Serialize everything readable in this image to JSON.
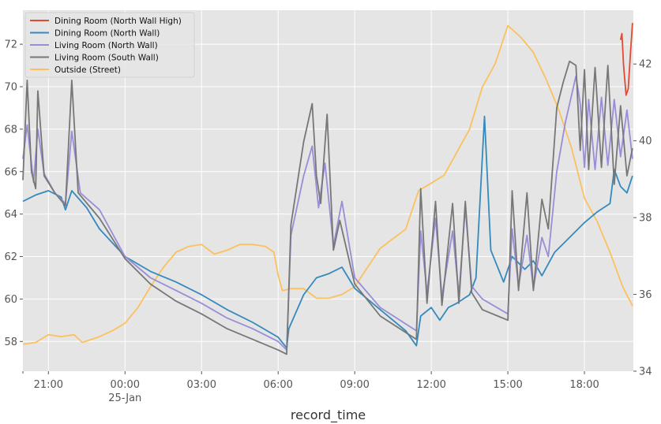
{
  "chart_data": {
    "type": "line",
    "xlabel": "record_time",
    "grid": true,
    "legend_position": "top-left",
    "x_range": [
      "2021-01-24T20:00",
      "2021-01-25T19:55"
    ],
    "x_ticks": [
      {
        "t": "2021-01-24T21:00",
        "label": "21:00"
      },
      {
        "t": "2021-01-25T00:00",
        "label": "00:00",
        "sublabel": "25-Jan"
      },
      {
        "t": "2021-01-25T03:00",
        "label": "03:00"
      },
      {
        "t": "2021-01-25T06:00",
        "label": "06:00"
      },
      {
        "t": "2021-01-25T09:00",
        "label": "09:00"
      },
      {
        "t": "2021-01-25T12:00",
        "label": "12:00"
      },
      {
        "t": "2021-01-25T15:00",
        "label": "15:00"
      },
      {
        "t": "2021-01-25T18:00",
        "label": "18:00"
      }
    ],
    "y_left": {
      "range": [
        56.6,
        73.6
      ],
      "ticks": [
        58,
        60,
        62,
        64,
        66,
        68,
        70,
        72
      ]
    },
    "y_right": {
      "range": [
        34.0,
        43.4
      ],
      "ticks": [
        34,
        36,
        38,
        40,
        42
      ]
    },
    "series": [
      {
        "name": "Dining Room (North Wall High)",
        "color": "#E24A33",
        "axis": "left",
        "points": [
          [
            "2021-01-25T19:25",
            72.2
          ],
          [
            "2021-01-25T19:28",
            72.5
          ],
          [
            "2021-01-25T19:32",
            71.0
          ],
          [
            "2021-01-25T19:38",
            69.6
          ],
          [
            "2021-01-25T19:43",
            69.9
          ],
          [
            "2021-01-25T19:48",
            71.5
          ],
          [
            "2021-01-25T19:53",
            73.0
          ]
        ]
      },
      {
        "name": "Dining Room (North Wall)",
        "color": "#348ABD",
        "axis": "left",
        "points": [
          [
            "2021-01-24T20:00",
            64.6
          ],
          [
            "2021-01-24T20:30",
            64.9
          ],
          [
            "2021-01-24T21:00",
            65.1
          ],
          [
            "2021-01-24T21:30",
            64.8
          ],
          [
            "2021-01-24T21:40",
            64.2
          ],
          [
            "2021-01-24T21:55",
            65.1
          ],
          [
            "2021-01-24T22:30",
            64.3
          ],
          [
            "2021-01-24T23:00",
            63.3
          ],
          [
            "2021-01-25T00:00",
            62.0
          ],
          [
            "2021-01-25T01:00",
            61.3
          ],
          [
            "2021-01-25T02:00",
            60.8
          ],
          [
            "2021-01-25T03:00",
            60.2
          ],
          [
            "2021-01-25T04:00",
            59.5
          ],
          [
            "2021-01-25T05:00",
            58.9
          ],
          [
            "2021-01-25T06:00",
            58.2
          ],
          [
            "2021-01-25T06:20",
            57.7
          ],
          [
            "2021-01-25T06:25",
            58.6
          ],
          [
            "2021-01-25T07:00",
            60.2
          ],
          [
            "2021-01-25T07:30",
            61.0
          ],
          [
            "2021-01-25T08:00",
            61.2
          ],
          [
            "2021-01-25T08:30",
            61.5
          ],
          [
            "2021-01-25T09:00",
            60.5
          ],
          [
            "2021-01-25T10:00",
            59.5
          ],
          [
            "2021-01-25T11:00",
            58.5
          ],
          [
            "2021-01-25T11:25",
            57.8
          ],
          [
            "2021-01-25T11:35",
            59.2
          ],
          [
            "2021-01-25T12:00",
            59.6
          ],
          [
            "2021-01-25T12:20",
            59.0
          ],
          [
            "2021-01-25T12:40",
            59.6
          ],
          [
            "2021-01-25T13:00",
            59.8
          ],
          [
            "2021-01-25T13:30",
            60.2
          ],
          [
            "2021-01-25T13:45",
            61.0
          ],
          [
            "2021-01-25T14:05",
            68.6
          ],
          [
            "2021-01-25T14:20",
            62.3
          ],
          [
            "2021-01-25T14:50",
            60.8
          ],
          [
            "2021-01-25T15:10",
            62.0
          ],
          [
            "2021-01-25T15:40",
            61.4
          ],
          [
            "2021-01-25T16:00",
            61.8
          ],
          [
            "2021-01-25T16:20",
            61.1
          ],
          [
            "2021-01-25T16:50",
            62.2
          ],
          [
            "2021-01-25T17:30",
            63.0
          ],
          [
            "2021-01-25T18:00",
            63.6
          ],
          [
            "2021-01-25T18:30",
            64.1
          ],
          [
            "2021-01-25T19:00",
            64.5
          ],
          [
            "2021-01-25T19:10",
            66.1
          ],
          [
            "2021-01-25T19:25",
            65.3
          ],
          [
            "2021-01-25T19:40",
            65.0
          ],
          [
            "2021-01-25T19:53",
            65.8
          ]
        ]
      },
      {
        "name": "Living Room (North Wall)",
        "color": "#988ED5",
        "axis": "left",
        "points": [
          [
            "2021-01-24T20:00",
            66.6
          ],
          [
            "2021-01-24T20:10",
            68.2
          ],
          [
            "2021-01-24T20:25",
            65.5
          ],
          [
            "2021-01-24T20:35",
            68.0
          ],
          [
            "2021-01-24T20:50",
            65.9
          ],
          [
            "2021-01-24T21:15",
            65.0
          ],
          [
            "2021-01-24T21:40",
            64.5
          ],
          [
            "2021-01-24T21:55",
            67.9
          ],
          [
            "2021-01-24T22:15",
            65.0
          ],
          [
            "2021-01-24T23:00",
            64.2
          ],
          [
            "2021-01-25T00:00",
            62.0
          ],
          [
            "2021-01-25T01:00",
            61.0
          ],
          [
            "2021-01-25T02:00",
            60.4
          ],
          [
            "2021-01-25T03:00",
            59.8
          ],
          [
            "2021-01-25T04:00",
            59.1
          ],
          [
            "2021-01-25T05:00",
            58.6
          ],
          [
            "2021-01-25T06:00",
            58.0
          ],
          [
            "2021-01-25T06:20",
            57.6
          ],
          [
            "2021-01-25T06:30",
            63.0
          ],
          [
            "2021-01-25T07:00",
            65.8
          ],
          [
            "2021-01-25T07:20",
            67.2
          ],
          [
            "2021-01-25T07:35",
            64.3
          ],
          [
            "2021-01-25T07:50",
            66.4
          ],
          [
            "2021-01-25T08:10",
            62.5
          ],
          [
            "2021-01-25T08:30",
            64.6
          ],
          [
            "2021-01-25T09:00",
            61.0
          ],
          [
            "2021-01-25T10:00",
            59.6
          ],
          [
            "2021-01-25T11:25",
            58.5
          ],
          [
            "2021-01-25T11:35",
            63.2
          ],
          [
            "2021-01-25T11:50",
            60.3
          ],
          [
            "2021-01-25T12:10",
            63.8
          ],
          [
            "2021-01-25T12:25",
            60.1
          ],
          [
            "2021-01-25T12:50",
            63.2
          ],
          [
            "2021-01-25T13:05",
            60.2
          ],
          [
            "2021-01-25T13:20",
            64.3
          ],
          [
            "2021-01-25T13:35",
            60.6
          ],
          [
            "2021-01-25T14:00",
            60.0
          ],
          [
            "2021-01-25T15:00",
            59.3
          ],
          [
            "2021-01-25T15:10",
            63.3
          ],
          [
            "2021-01-25T15:25",
            60.6
          ],
          [
            "2021-01-25T15:45",
            63.0
          ],
          [
            "2021-01-25T16:00",
            60.5
          ],
          [
            "2021-01-25T16:20",
            62.9
          ],
          [
            "2021-01-25T16:35",
            62.0
          ],
          [
            "2021-01-25T16:55",
            66.0
          ],
          [
            "2021-01-25T17:15",
            68.3
          ],
          [
            "2021-01-25T17:40",
            70.5
          ],
          [
            "2021-01-25T17:50",
            69.2
          ],
          [
            "2021-01-25T18:00",
            66.2
          ],
          [
            "2021-01-25T18:10",
            69.4
          ],
          [
            "2021-01-25T18:25",
            66.1
          ],
          [
            "2021-01-25T18:40",
            69.5
          ],
          [
            "2021-01-25T18:55",
            66.3
          ],
          [
            "2021-01-25T19:10",
            69.4
          ],
          [
            "2021-01-25T19:25",
            66.7
          ],
          [
            "2021-01-25T19:40",
            68.9
          ],
          [
            "2021-01-25T19:53",
            66.6
          ]
        ]
      },
      {
        "name": "Living Room (South Wall)",
        "color": "#777777",
        "axis": "left",
        "points": [
          [
            "2021-01-24T20:00",
            65.6
          ],
          [
            "2021-01-24T20:10",
            70.3
          ],
          [
            "2021-01-24T20:20",
            66.0
          ],
          [
            "2021-01-24T20:30",
            65.2
          ],
          [
            "2021-01-24T20:35",
            69.8
          ],
          [
            "2021-01-24T20:50",
            65.8
          ],
          [
            "2021-01-24T21:15",
            65.0
          ],
          [
            "2021-01-24T21:40",
            64.4
          ],
          [
            "2021-01-24T21:55",
            70.3
          ],
          [
            "2021-01-24T22:10",
            65.0
          ],
          [
            "2021-01-24T23:00",
            63.8
          ],
          [
            "2021-01-25T00:00",
            61.9
          ],
          [
            "2021-01-25T01:00",
            60.7
          ],
          [
            "2021-01-25T02:00",
            59.9
          ],
          [
            "2021-01-25T03:00",
            59.3
          ],
          [
            "2021-01-25T04:00",
            58.6
          ],
          [
            "2021-01-25T05:00",
            58.1
          ],
          [
            "2021-01-25T06:00",
            57.6
          ],
          [
            "2021-01-25T06:20",
            57.4
          ],
          [
            "2021-01-25T06:30",
            63.5
          ],
          [
            "2021-01-25T07:00",
            67.4
          ],
          [
            "2021-01-25T07:20",
            69.2
          ],
          [
            "2021-01-25T07:30",
            65.8
          ],
          [
            "2021-01-25T07:40",
            64.5
          ],
          [
            "2021-01-25T07:55",
            68.7
          ],
          [
            "2021-01-25T08:10",
            62.3
          ],
          [
            "2021-01-25T08:25",
            63.7
          ],
          [
            "2021-01-25T09:00",
            60.7
          ],
          [
            "2021-01-25T10:00",
            59.2
          ],
          [
            "2021-01-25T11:25",
            58.1
          ],
          [
            "2021-01-25T11:35",
            65.2
          ],
          [
            "2021-01-25T11:50",
            59.8
          ],
          [
            "2021-01-25T12:10",
            64.6
          ],
          [
            "2021-01-25T12:25",
            59.7
          ],
          [
            "2021-01-25T12:50",
            64.5
          ],
          [
            "2021-01-25T13:05",
            59.8
          ],
          [
            "2021-01-25T13:20",
            64.6
          ],
          [
            "2021-01-25T13:35",
            60.3
          ],
          [
            "2021-01-25T14:00",
            59.5
          ],
          [
            "2021-01-25T15:00",
            59.0
          ],
          [
            "2021-01-25T15:10",
            65.1
          ],
          [
            "2021-01-25T15:25",
            60.4
          ],
          [
            "2021-01-25T15:45",
            65.0
          ],
          [
            "2021-01-25T16:00",
            60.4
          ],
          [
            "2021-01-25T16:20",
            64.7
          ],
          [
            "2021-01-25T16:35",
            63.3
          ],
          [
            "2021-01-25T16:55",
            69.0
          ],
          [
            "2021-01-25T17:10",
            70.2
          ],
          [
            "2021-01-25T17:25",
            71.2
          ],
          [
            "2021-01-25T17:40",
            71.0
          ],
          [
            "2021-01-25T17:50",
            67.0
          ],
          [
            "2021-01-25T18:00",
            70.8
          ],
          [
            "2021-01-25T18:10",
            66.1
          ],
          [
            "2021-01-25T18:25",
            70.9
          ],
          [
            "2021-01-25T18:40",
            66.2
          ],
          [
            "2021-01-25T18:55",
            71.0
          ],
          [
            "2021-01-25T19:10",
            65.4
          ],
          [
            "2021-01-25T19:25",
            69.1
          ],
          [
            "2021-01-25T19:40",
            65.8
          ],
          [
            "2021-01-25T19:53",
            67.1
          ]
        ]
      },
      {
        "name": "Outside (Street)",
        "color": "#FBC15E",
        "axis": "right",
        "points": [
          [
            "2021-01-24T20:00",
            34.7
          ],
          [
            "2021-01-24T20:30",
            34.75
          ],
          [
            "2021-01-24T21:00",
            34.95
          ],
          [
            "2021-01-24T21:30",
            34.9
          ],
          [
            "2021-01-24T22:00",
            34.95
          ],
          [
            "2021-01-24T22:20",
            34.75
          ],
          [
            "2021-01-24T23:00",
            34.9
          ],
          [
            "2021-01-24T23:30",
            35.05
          ],
          [
            "2021-01-25T00:00",
            35.25
          ],
          [
            "2021-01-25T00:30",
            35.65
          ],
          [
            "2021-01-25T01:00",
            36.2
          ],
          [
            "2021-01-25T01:30",
            36.7
          ],
          [
            "2021-01-25T02:00",
            37.1
          ],
          [
            "2021-01-25T02:30",
            37.25
          ],
          [
            "2021-01-25T03:00",
            37.3
          ],
          [
            "2021-01-25T03:30",
            37.05
          ],
          [
            "2021-01-25T04:00",
            37.15
          ],
          [
            "2021-01-25T04:30",
            37.3
          ],
          [
            "2021-01-25T05:00",
            37.3
          ],
          [
            "2021-01-25T05:30",
            37.25
          ],
          [
            "2021-01-25T05:50",
            37.1
          ],
          [
            "2021-01-25T06:00",
            36.5
          ],
          [
            "2021-01-25T06:10",
            36.1
          ],
          [
            "2021-01-25T06:30",
            36.15
          ],
          [
            "2021-01-25T07:00",
            36.15
          ],
          [
            "2021-01-25T07:30",
            35.9
          ],
          [
            "2021-01-25T08:00",
            35.9
          ],
          [
            "2021-01-25T08:30",
            36.0
          ],
          [
            "2021-01-25T09:00",
            36.2
          ],
          [
            "2021-01-25T09:30",
            36.7
          ],
          [
            "2021-01-25T10:00",
            37.2
          ],
          [
            "2021-01-25T10:30",
            37.45
          ],
          [
            "2021-01-25T11:00",
            37.7
          ],
          [
            "2021-01-25T11:30",
            38.7
          ],
          [
            "2021-01-25T12:00",
            38.9
          ],
          [
            "2021-01-25T12:30",
            39.1
          ],
          [
            "2021-01-25T13:00",
            39.7
          ],
          [
            "2021-01-25T13:30",
            40.3
          ],
          [
            "2021-01-25T14:00",
            41.4
          ],
          [
            "2021-01-25T14:30",
            42.0
          ],
          [
            "2021-01-25T15:00",
            43.0
          ],
          [
            "2021-01-25T15:30",
            42.7
          ],
          [
            "2021-01-25T16:00",
            42.3
          ],
          [
            "2021-01-25T16:30",
            41.6
          ],
          [
            "2021-01-25T17:00",
            40.8
          ],
          [
            "2021-01-25T17:30",
            39.8
          ],
          [
            "2021-01-25T18:00",
            38.5
          ],
          [
            "2021-01-25T18:30",
            37.9
          ],
          [
            "2021-01-25T19:00",
            37.1
          ],
          [
            "2021-01-25T19:30",
            36.2
          ],
          [
            "2021-01-25T19:53",
            35.7
          ]
        ]
      }
    ]
  }
}
